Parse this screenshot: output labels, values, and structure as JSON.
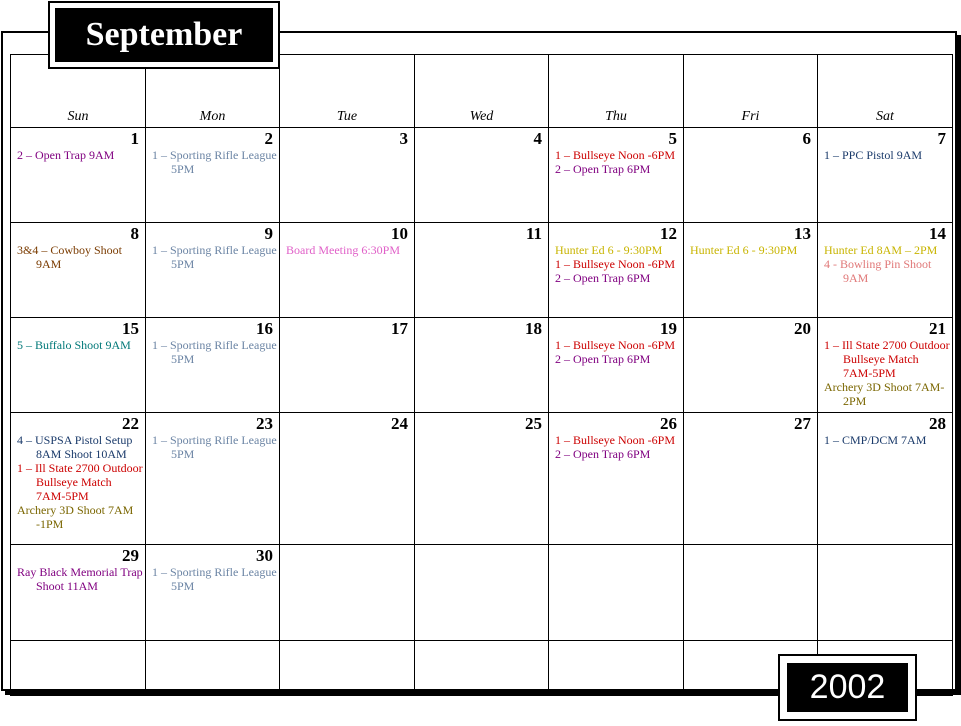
{
  "month": "September",
  "year": "2002",
  "day_names": [
    "Sun",
    "Mon",
    "Tue",
    "Wed",
    "Thu",
    "Fri",
    "Sat"
  ],
  "colors": {
    "purple": "#800080",
    "steel_blue": "#6b84a4",
    "red": "#cc0000",
    "navy": "#1a3a6a",
    "brown": "#7a3b00",
    "pink": "#e060c8",
    "yellow": "#c8b400",
    "salmon": "#e07878",
    "teal": "#007878",
    "olive": "#7a6600"
  },
  "weeks": [
    [
      {
        "day": "1",
        "events": [
          {
            "text": "2 – Open Trap  9AM",
            "color": "#800080"
          }
        ]
      },
      {
        "day": "2",
        "events": [
          {
            "text": "1 – Sporting Rifle League  5PM",
            "color": "#6b84a4"
          }
        ]
      },
      {
        "day": "3",
        "events": []
      },
      {
        "day": "4",
        "events": []
      },
      {
        "day": "5",
        "events": [
          {
            "text": "1 – Bullseye Noon -6PM",
            "color": "#cc0000"
          },
          {
            "text": "2 – Open Trap  6PM",
            "color": "#800080"
          }
        ]
      },
      {
        "day": "6",
        "events": []
      },
      {
        "day": "7",
        "events": [
          {
            "text": "1 – PPC Pistol  9AM",
            "color": "#1a3a6a"
          }
        ]
      }
    ],
    [
      {
        "day": "8",
        "events": [
          {
            "text": "3&4 – Cowboy Shoot 9AM",
            "color": "#7a3b00"
          }
        ]
      },
      {
        "day": "9",
        "events": [
          {
            "text": "1 – Sporting Rifle League  5PM",
            "color": "#6b84a4"
          }
        ]
      },
      {
        "day": "10",
        "events": [
          {
            "text": "Board Meeting  6:30PM",
            "color": "#e060c8"
          }
        ]
      },
      {
        "day": "11",
        "events": []
      },
      {
        "day": "12",
        "events": [
          {
            "text": "Hunter Ed  6 - 9:30PM",
            "color": "#c8b400"
          },
          {
            "text": "1 – Bullseye Noon -6PM",
            "color": "#cc0000"
          },
          {
            "text": "2 – Open Trap  6PM",
            "color": "#800080"
          }
        ]
      },
      {
        "day": "13",
        "events": [
          {
            "text": "Hunter Ed  6 - 9:30PM",
            "color": "#c8b400"
          }
        ]
      },
      {
        "day": "14",
        "events": [
          {
            "text": "Hunter Ed  8AM – 2PM",
            "color": "#c8b400"
          },
          {
            "text": "4 - Bowling Pin Shoot 9AM",
            "color": "#e07878"
          }
        ]
      }
    ],
    [
      {
        "day": "15",
        "events": [
          {
            "text": "5 – Buffalo Shoot  9AM",
            "color": "#007878"
          }
        ]
      },
      {
        "day": "16",
        "events": [
          {
            "text": "1 – Sporting Rifle League  5PM",
            "color": "#6b84a4"
          }
        ]
      },
      {
        "day": "17",
        "events": []
      },
      {
        "day": "18",
        "events": []
      },
      {
        "day": "19",
        "events": [
          {
            "text": "1 – Bullseye Noon -6PM",
            "color": "#cc0000"
          },
          {
            "text": "2 – Open Trap  6PM",
            "color": "#800080"
          }
        ]
      },
      {
        "day": "20",
        "events": []
      },
      {
        "day": "21",
        "events": [
          {
            "text": "1 – Ill State 2700 Outdoor Bullseye Match 7AM-5PM",
            "color": "#cc0000"
          },
          {
            "text": "Archery 3D Shoot 7AM-2PM",
            "color": "#7a6600"
          }
        ]
      }
    ],
    [
      {
        "day": "22",
        "events": [
          {
            "text": "4 – USPSA Pistol Setup 8AM Shoot 10AM",
            "color": "#1a3a6a"
          },
          {
            "text": "1 – Ill State 2700 Outdoor Bullseye Match 7AM-5PM",
            "color": "#cc0000"
          },
          {
            "text": "Archery 3D Shoot 7AM -1PM",
            "color": "#7a6600"
          }
        ]
      },
      {
        "day": "23",
        "events": [
          {
            "text": "1 – Sporting Rifle League  5PM",
            "color": "#6b84a4"
          }
        ]
      },
      {
        "day": "24",
        "events": []
      },
      {
        "day": "25",
        "events": []
      },
      {
        "day": "26",
        "events": [
          {
            "text": "1 – Bullseye Noon -6PM",
            "color": "#cc0000"
          },
          {
            "text": "2 – Open Trap  6PM",
            "color": "#800080"
          }
        ]
      },
      {
        "day": "27",
        "events": []
      },
      {
        "day": "28",
        "events": [
          {
            "text": "1 – CMP/DCM  7AM",
            "color": "#1a3a6a"
          }
        ]
      }
    ],
    [
      {
        "day": "29",
        "events": [
          {
            "text": "Ray Black Memorial Trap Shoot 11AM",
            "color": "#800080"
          }
        ]
      },
      {
        "day": "30",
        "events": [
          {
            "text": "1 – Sporting Rifle League  5PM",
            "color": "#6b84a4"
          }
        ]
      },
      {
        "day": "",
        "events": []
      },
      {
        "day": "",
        "events": []
      },
      {
        "day": "",
        "events": []
      },
      {
        "day": "",
        "events": []
      },
      {
        "day": "",
        "events": []
      }
    ],
    [
      {
        "day": "",
        "events": []
      },
      {
        "day": "",
        "events": []
      },
      {
        "day": "",
        "events": []
      },
      {
        "day": "",
        "events": []
      },
      {
        "day": "",
        "events": []
      },
      {
        "day": "",
        "events": []
      },
      {
        "day": "",
        "events": []
      }
    ]
  ]
}
